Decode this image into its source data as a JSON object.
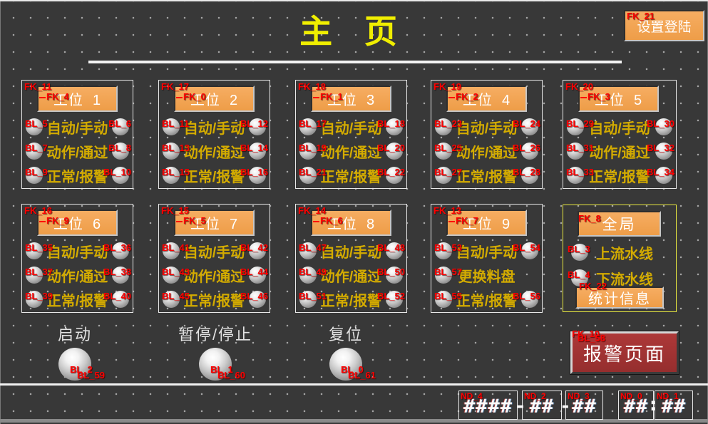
{
  "title": "主 页",
  "settings_button": {
    "label": "设置登陆",
    "tag": "FK_21"
  },
  "stations": [
    {
      "tag_a": "FK_11",
      "tag_b": "FK_4",
      "name": "工位  1",
      "rows": [
        {
          "lt": "BL_5",
          "text": "自动/手动",
          "rt": "BL_6"
        },
        {
          "lt": "BL_7",
          "text": "动作/通过",
          "rt": "BL_8"
        },
        {
          "lt": "BL_9",
          "text": "正常/报警",
          "rt": "BL_10"
        }
      ]
    },
    {
      "tag_a": "FK_17",
      "tag_b": "FK_0",
      "name": "工位  2",
      "rows": [
        {
          "lt": "BL_11",
          "text": "自动/手动",
          "rt": "BL_12"
        },
        {
          "lt": "BL_13",
          "text": "动作/通过",
          "rt": "BL_14"
        },
        {
          "lt": "BL_15",
          "text": "正常/报警",
          "rt": "BL_16"
        }
      ]
    },
    {
      "tag_a": "FK_18",
      "tag_b": "FK_1",
      "name": "工位  3",
      "rows": [
        {
          "lt": "BL_17",
          "text": "自动/手动",
          "rt": "BL_18"
        },
        {
          "lt": "BL_19",
          "text": "动作/通过",
          "rt": "BL_20"
        },
        {
          "lt": "BL_21",
          "text": "正常/报警",
          "rt": "BL_22"
        }
      ]
    },
    {
      "tag_a": "FK_19",
      "tag_b": "FK_2",
      "name": "工位  4",
      "rows": [
        {
          "lt": "BL_23",
          "text": "自动/手动",
          "rt": "BL_24"
        },
        {
          "lt": "BL_25",
          "text": "动作/通过",
          "rt": "BL_26"
        },
        {
          "lt": "BL_27",
          "text": "正常/报警",
          "rt": "BL_28"
        }
      ]
    },
    {
      "tag_a": "FK_20",
      "tag_b": "FK_3",
      "name": "工位  5",
      "rows": [
        {
          "lt": "BL_29",
          "text": "自动/手动",
          "rt": "BL_30"
        },
        {
          "lt": "BL_31",
          "text": "动作/通过",
          "rt": "BL_32"
        },
        {
          "lt": "BL_33",
          "text": "正常/报警",
          "rt": "BL_34"
        }
      ]
    },
    {
      "tag_a": "FK_16",
      "tag_b": "FK_9",
      "name": "工位  6",
      "rows": [
        {
          "lt": "BL_35",
          "text": "自动/手动",
          "rt": "BL_36"
        },
        {
          "lt": "BL_37",
          "text": "动作/通过",
          "rt": "BL_38"
        },
        {
          "lt": "BL_39",
          "text": "正常/报警",
          "rt": "BL_40"
        }
      ]
    },
    {
      "tag_a": "FK_15",
      "tag_b": "FK_5",
      "name": "工位  7",
      "rows": [
        {
          "lt": "BL_41",
          "text": "自动/手动",
          "rt": "BL_42"
        },
        {
          "lt": "BL_43",
          "text": "动作/通过",
          "rt": "BL_44"
        },
        {
          "lt": "BL_45",
          "text": "正常/报警",
          "rt": "BL_46"
        }
      ]
    },
    {
      "tag_a": "FK_14",
      "tag_b": "FK_6",
      "name": "工位  8",
      "rows": [
        {
          "lt": "BL_47",
          "text": "自动/手动",
          "rt": "BL_48"
        },
        {
          "lt": "BL_49",
          "text": "动作/通过",
          "rt": "BL_50"
        },
        {
          "lt": "BL_51",
          "text": "正常/报警",
          "rt": "BL_52"
        }
      ]
    },
    {
      "tag_a": "FK_13",
      "tag_b": "FK_7",
      "name": "工位  9",
      "rows": [
        {
          "lt": "BL_53",
          "text": "自动/手动",
          "rt": "BL_54"
        },
        {
          "lt": "BL_57",
          "text": "更换料盘",
          "rt": null
        },
        {
          "lt": "BL_55",
          "text": "正常/报警",
          "rt": "BL_56"
        }
      ]
    }
  ],
  "global_panel": {
    "tag": "FK_8",
    "title": "全局",
    "rows": [
      {
        "tag": "BL_3",
        "text": "上流水线"
      },
      {
        "tag": "BL_4",
        "text": "下流水线"
      }
    ],
    "stats_button": {
      "label": "统计信息",
      "tag": "FK_22"
    }
  },
  "controls": [
    {
      "label": "启动",
      "tag_a": "BL_2",
      "tag_b": "BL_59"
    },
    {
      "label": "暂停/停止",
      "tag_a": "BL_1",
      "tag_b": "BL_60"
    },
    {
      "label": "复位",
      "tag_a": "BL_0",
      "tag_b": "BL_61"
    }
  ],
  "alarm_button": {
    "label": "报警页面",
    "tag_a": "FK_10",
    "tag_b": "BL_58"
  },
  "datetime": {
    "boxes": [
      {
        "tag": "ND_4",
        "value": "####"
      },
      {
        "tag": "ND_2",
        "value": "##"
      },
      {
        "tag": "ND_3",
        "value": "##"
      },
      {
        "tag": "ND_0",
        "value": "##"
      },
      {
        "tag": "ND_1",
        "value": "##"
      }
    ],
    "date_separator": "-",
    "time_separator": ":"
  },
  "colors": {
    "background": "#383838",
    "accent_orange": "#f2a45c",
    "alarm_red": "#a03232",
    "tag_red": "#ff0000",
    "label_yellow": "#d3ab00",
    "title_yellow": "#f0ee00",
    "panel_border": "#e8e8e8",
    "global_border": "#e8e840"
  }
}
